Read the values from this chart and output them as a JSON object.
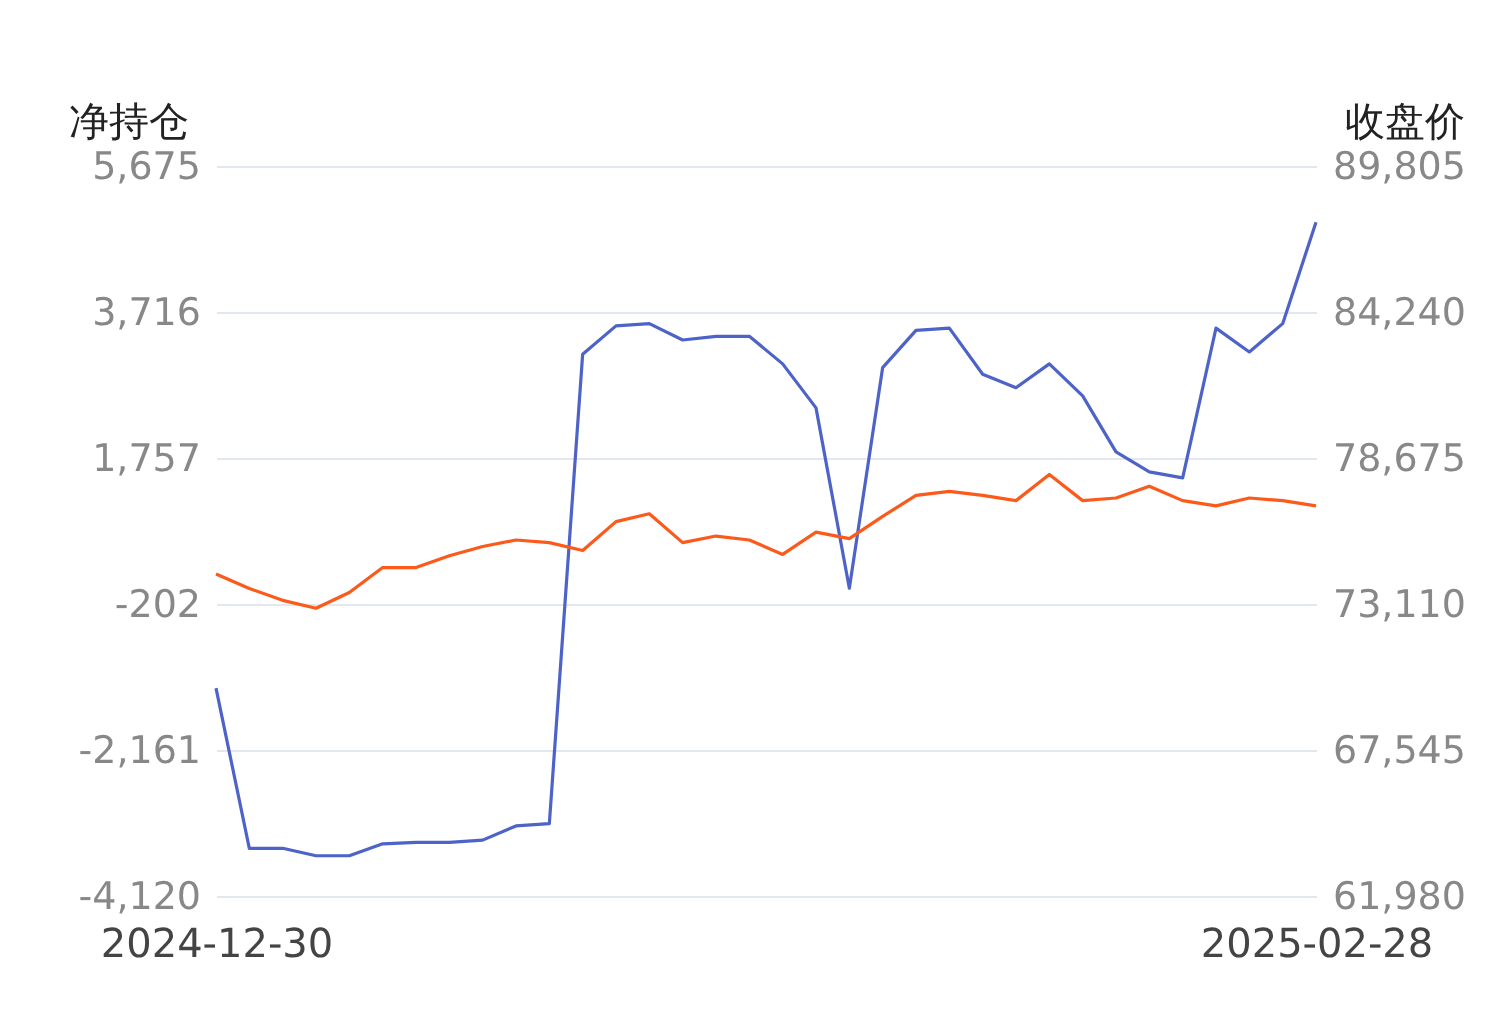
{
  "chart_data": {
    "type": "line",
    "ylabel": "净持仓",
    "y2label": "收盘价",
    "categories": [
      "2024-12-30",
      null,
      null,
      null,
      null,
      null,
      null,
      null,
      null,
      null,
      null,
      null,
      null,
      null,
      null,
      null,
      null,
      null,
      null,
      null,
      null,
      null,
      null,
      null,
      null,
      null,
      null,
      null,
      null,
      null,
      null,
      null,
      null,
      "2025-02-28"
    ],
    "series": [
      {
        "color": "#4e63c8",
        "values": [
          -1330,
          -3480,
          -3480,
          -3580,
          -3580,
          -3420,
          -3400,
          -3400,
          -3370,
          -3180,
          -3150,
          3150,
          3530,
          3560,
          3340,
          3390,
          3390,
          3020,
          2430,
          10,
          2970,
          3470,
          3500,
          2880,
          2700,
          3020,
          2590,
          1840,
          1570,
          1490,
          3500,
          3180,
          3560,
          4920
        ]
      },
      {
        "color": "#fc5a1a",
        "axis": "y2",
        "values": [
          74250,
          73700,
          73250,
          72950,
          73550,
          74500,
          74500,
          74950,
          75300,
          75550,
          75450,
          75150,
          76250,
          76550,
          75450,
          75700,
          75550,
          75000,
          75850,
          75600,
          76450,
          77250,
          77400,
          77250,
          77050,
          78050,
          77050,
          77150,
          77600,
          77050,
          76850,
          77150,
          77050,
          76850
        ]
      }
    ],
    "ylim": [
      -4120,
      5675
    ],
    "yticks": [
      {
        "value": -4120,
        "label": "-4,120"
      },
      {
        "value": -2161,
        "label": "-2,161"
      },
      {
        "value": -202,
        "label": "-202"
      },
      {
        "value": 1757,
        "label": "1,757"
      },
      {
        "value": 3716,
        "label": "3,716"
      },
      {
        "value": 5675,
        "label": "5,675"
      }
    ],
    "y2lim": [
      61980,
      89805
    ],
    "y2ticks": [
      {
        "value": 61980,
        "label": "61,980"
      },
      {
        "value": 67545,
        "label": "67,545"
      },
      {
        "value": 73110,
        "label": "73,110"
      },
      {
        "value": 78675,
        "label": "78,675"
      },
      {
        "value": 84240,
        "label": "84,240"
      },
      {
        "value": 89805,
        "label": "89,805"
      }
    ],
    "grid": "y"
  }
}
